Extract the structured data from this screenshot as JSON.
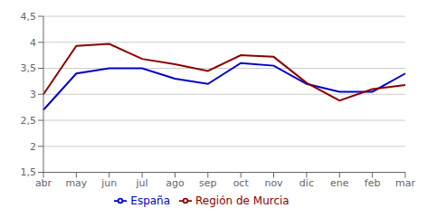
{
  "chart_data": {
    "type": "line",
    "categories": [
      "abr",
      "may",
      "jun",
      "jul",
      "ago",
      "sep",
      "oct",
      "nov",
      "dic",
      "ene",
      "feb",
      "mar"
    ],
    "series": [
      {
        "name": "España",
        "color": "#0000cc",
        "values": [
          2.7,
          3.4,
          3.5,
          3.5,
          3.3,
          3.2,
          3.6,
          3.55,
          3.2,
          3.05,
          3.05,
          3.4
        ]
      },
      {
        "name": "Región de Murcia",
        "color": "#8b0000",
        "values": [
          3.0,
          3.93,
          3.97,
          3.68,
          3.58,
          3.45,
          3.75,
          3.72,
          3.22,
          2.88,
          3.1,
          3.18
        ]
      }
    ],
    "ylim": [
      1.5,
      4.5
    ],
    "yticks": [
      {
        "value": 1.5,
        "label": "1,5"
      },
      2,
      {
        "value": 2.5,
        "label": "2,5"
      },
      3,
      {
        "value": 3.5,
        "label": "3,5"
      },
      4,
      {
        "value": 4.5,
        "label": "4,5"
      }
    ],
    "grid": true,
    "legend": "bottom"
  }
}
